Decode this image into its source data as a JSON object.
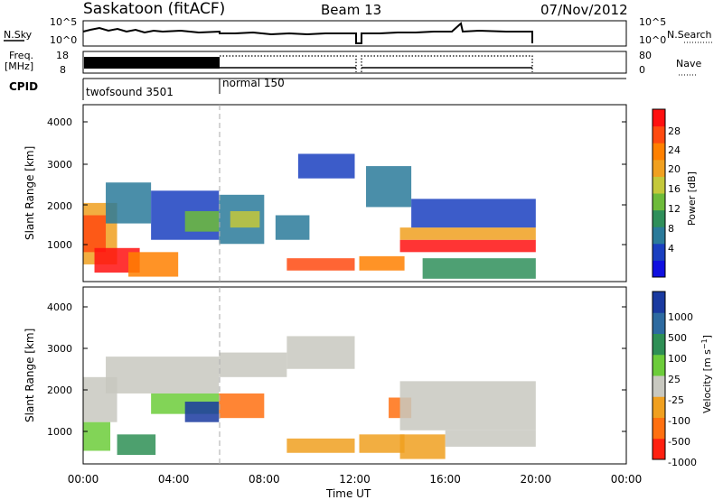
{
  "header": {
    "station": "Saskatoon (fitACF)",
    "beam": "Beam 13",
    "date": "07/Nov/2012"
  },
  "strips": {
    "nsky": {
      "label": "N.Sky",
      "tick_top": "10^5",
      "tick_bottom": "10^0",
      "right_label": "N.Search",
      "right_tick_top": "10^5",
      "right_tick_bottom": "10^0"
    },
    "freq": {
      "label_line1": "Freq.",
      "label_line2": "[MHz]",
      "tick_top": "18",
      "tick_bottom": "8",
      "right_label": "Nave",
      "right_tick_top": "80",
      "right_tick_bottom": "0"
    },
    "cpid": {
      "label": "CPID",
      "segments": [
        {
          "name": "twofsound 3501",
          "start_hour": 0,
          "end_hour": 6
        },
        {
          "name": "normal 150",
          "start_hour": 6,
          "end_hour": 24
        }
      ]
    }
  },
  "time_axis": {
    "label": "Time UT",
    "ticks": [
      "00:00",
      "04:00",
      "08:00",
      "12:00",
      "16:00",
      "20:00",
      "00:00"
    ]
  },
  "chart_data": [
    {
      "type": "heatmap",
      "title": "",
      "xlabel": "Time UT",
      "ylabel": "Slant Range [km]",
      "xlim": [
        0,
        24
      ],
      "ylim": [
        180,
        4500
      ],
      "yticks": [
        "1000",
        "2000",
        "3000",
        "4000"
      ],
      "colorbar": {
        "label": "Power [dB]",
        "ticks": [
          "28",
          "24",
          "20",
          "16",
          "12",
          "8",
          "4"
        ],
        "colors": [
          "#1010e0",
          "#1a3fc0",
          "#2a7a9a",
          "#2f8f5a",
          "#6dbb3a",
          "#c4c83a",
          "#f0a020",
          "#ff8000",
          "#ff4a10",
          "#ff1010"
        ]
      },
      "regions": [
        {
          "t0": 0.0,
          "t1": 1.5,
          "r0": 600,
          "r1": 2100,
          "level": 6
        },
        {
          "t0": 0.0,
          "t1": 1.0,
          "r0": 900,
          "r1": 1800,
          "level": 8
        },
        {
          "t0": 0.5,
          "t1": 2.5,
          "r0": 400,
          "r1": 1000,
          "level": 9
        },
        {
          "t0": 1.0,
          "t1": 3.0,
          "r0": 1600,
          "r1": 2600,
          "level": 2
        },
        {
          "t0": 2.0,
          "t1": 4.2,
          "r0": 300,
          "r1": 900,
          "level": 7
        },
        {
          "t0": 3.0,
          "t1": 6.0,
          "r0": 1200,
          "r1": 2400,
          "level": 1
        },
        {
          "t0": 4.5,
          "t1": 6.0,
          "r0": 1400,
          "r1": 1900,
          "level": 4
        },
        {
          "t0": 6.0,
          "t1": 8.0,
          "r0": 1100,
          "r1": 2300,
          "level": 2
        },
        {
          "t0": 6.5,
          "t1": 7.8,
          "r0": 1500,
          "r1": 1900,
          "level": 5
        },
        {
          "t0": 8.5,
          "t1": 10.0,
          "r0": 1200,
          "r1": 1800,
          "level": 2
        },
        {
          "t0": 9.0,
          "t1": 12.0,
          "r0": 450,
          "r1": 750,
          "level": 8
        },
        {
          "t0": 9.5,
          "t1": 12.0,
          "r0": 2700,
          "r1": 3300,
          "level": 1
        },
        {
          "t0": 12.2,
          "t1": 14.2,
          "r0": 450,
          "r1": 800,
          "level": 7
        },
        {
          "t0": 12.5,
          "t1": 14.5,
          "r0": 2000,
          "r1": 3000,
          "level": 2
        },
        {
          "t0": 14.0,
          "t1": 20.0,
          "r0": 900,
          "r1": 1200,
          "level": 9
        },
        {
          "t0": 14.0,
          "t1": 20.0,
          "r0": 1200,
          "r1": 1500,
          "level": 6
        },
        {
          "t0": 14.5,
          "t1": 20.0,
          "r0": 1500,
          "r1": 2200,
          "level": 1
        },
        {
          "t0": 15.0,
          "t1": 20.0,
          "r0": 250,
          "r1": 750,
          "level": 3
        }
      ]
    },
    {
      "type": "heatmap",
      "title": "",
      "xlabel": "Time UT",
      "ylabel": "Slant Range [km]",
      "xlim": [
        0,
        24
      ],
      "ylim": [
        180,
        4500
      ],
      "yticks": [
        "1000",
        "2000",
        "3000",
        "4000"
      ],
      "colorbar": {
        "label": "Velocity [m s^-1]",
        "ticks": [
          "1000",
          "500",
          "100",
          "25",
          "-25",
          "-100",
          "-500",
          "-1000"
        ],
        "colors": [
          "#1a3aa0",
          "#2d6aa0",
          "#2e8f55",
          "#6ccc3a",
          "#c8c8c0",
          "#f0a020",
          "#ff7010",
          "#ff2010"
        ]
      },
      "regions": [
        {
          "t0": 0.0,
          "t1": 1.5,
          "r0": 1200,
          "r1": 2300,
          "level": 4
        },
        {
          "t0": 0.0,
          "t1": 1.2,
          "r0": 500,
          "r1": 1200,
          "level": 3
        },
        {
          "t0": 1.5,
          "t1": 3.2,
          "r0": 400,
          "r1": 900,
          "level": 2
        },
        {
          "t0": 1.0,
          "t1": 6.0,
          "r0": 1900,
          "r1": 2800,
          "level": 4
        },
        {
          "t0": 3.0,
          "t1": 6.0,
          "r0": 1400,
          "r1": 1900,
          "level": 3
        },
        {
          "t0": 4.5,
          "t1": 6.0,
          "r0": 1200,
          "r1": 1700,
          "level": 0
        },
        {
          "t0": 6.0,
          "t1": 8.0,
          "r0": 1300,
          "r1": 1900,
          "level": 6
        },
        {
          "t0": 6.0,
          "t1": 9.0,
          "r0": 2300,
          "r1": 2900,
          "level": 4
        },
        {
          "t0": 9.0,
          "t1": 12.0,
          "r0": 2500,
          "r1": 3300,
          "level": 4
        },
        {
          "t0": 9.0,
          "t1": 12.0,
          "r0": 450,
          "r1": 800,
          "level": 5
        },
        {
          "t0": 12.2,
          "t1": 14.2,
          "r0": 450,
          "r1": 900,
          "level": 5
        },
        {
          "t0": 13.5,
          "t1": 14.5,
          "r0": 1300,
          "r1": 1800,
          "level": 6
        },
        {
          "t0": 14.0,
          "t1": 20.0,
          "r0": 1000,
          "r1": 2200,
          "level": 4
        },
        {
          "t0": 14.0,
          "t1": 16.0,
          "r0": 300,
          "r1": 900,
          "level": 5
        },
        {
          "t0": 16.0,
          "t1": 20.0,
          "r0": 600,
          "r1": 1000,
          "level": 4
        }
      ]
    }
  ]
}
